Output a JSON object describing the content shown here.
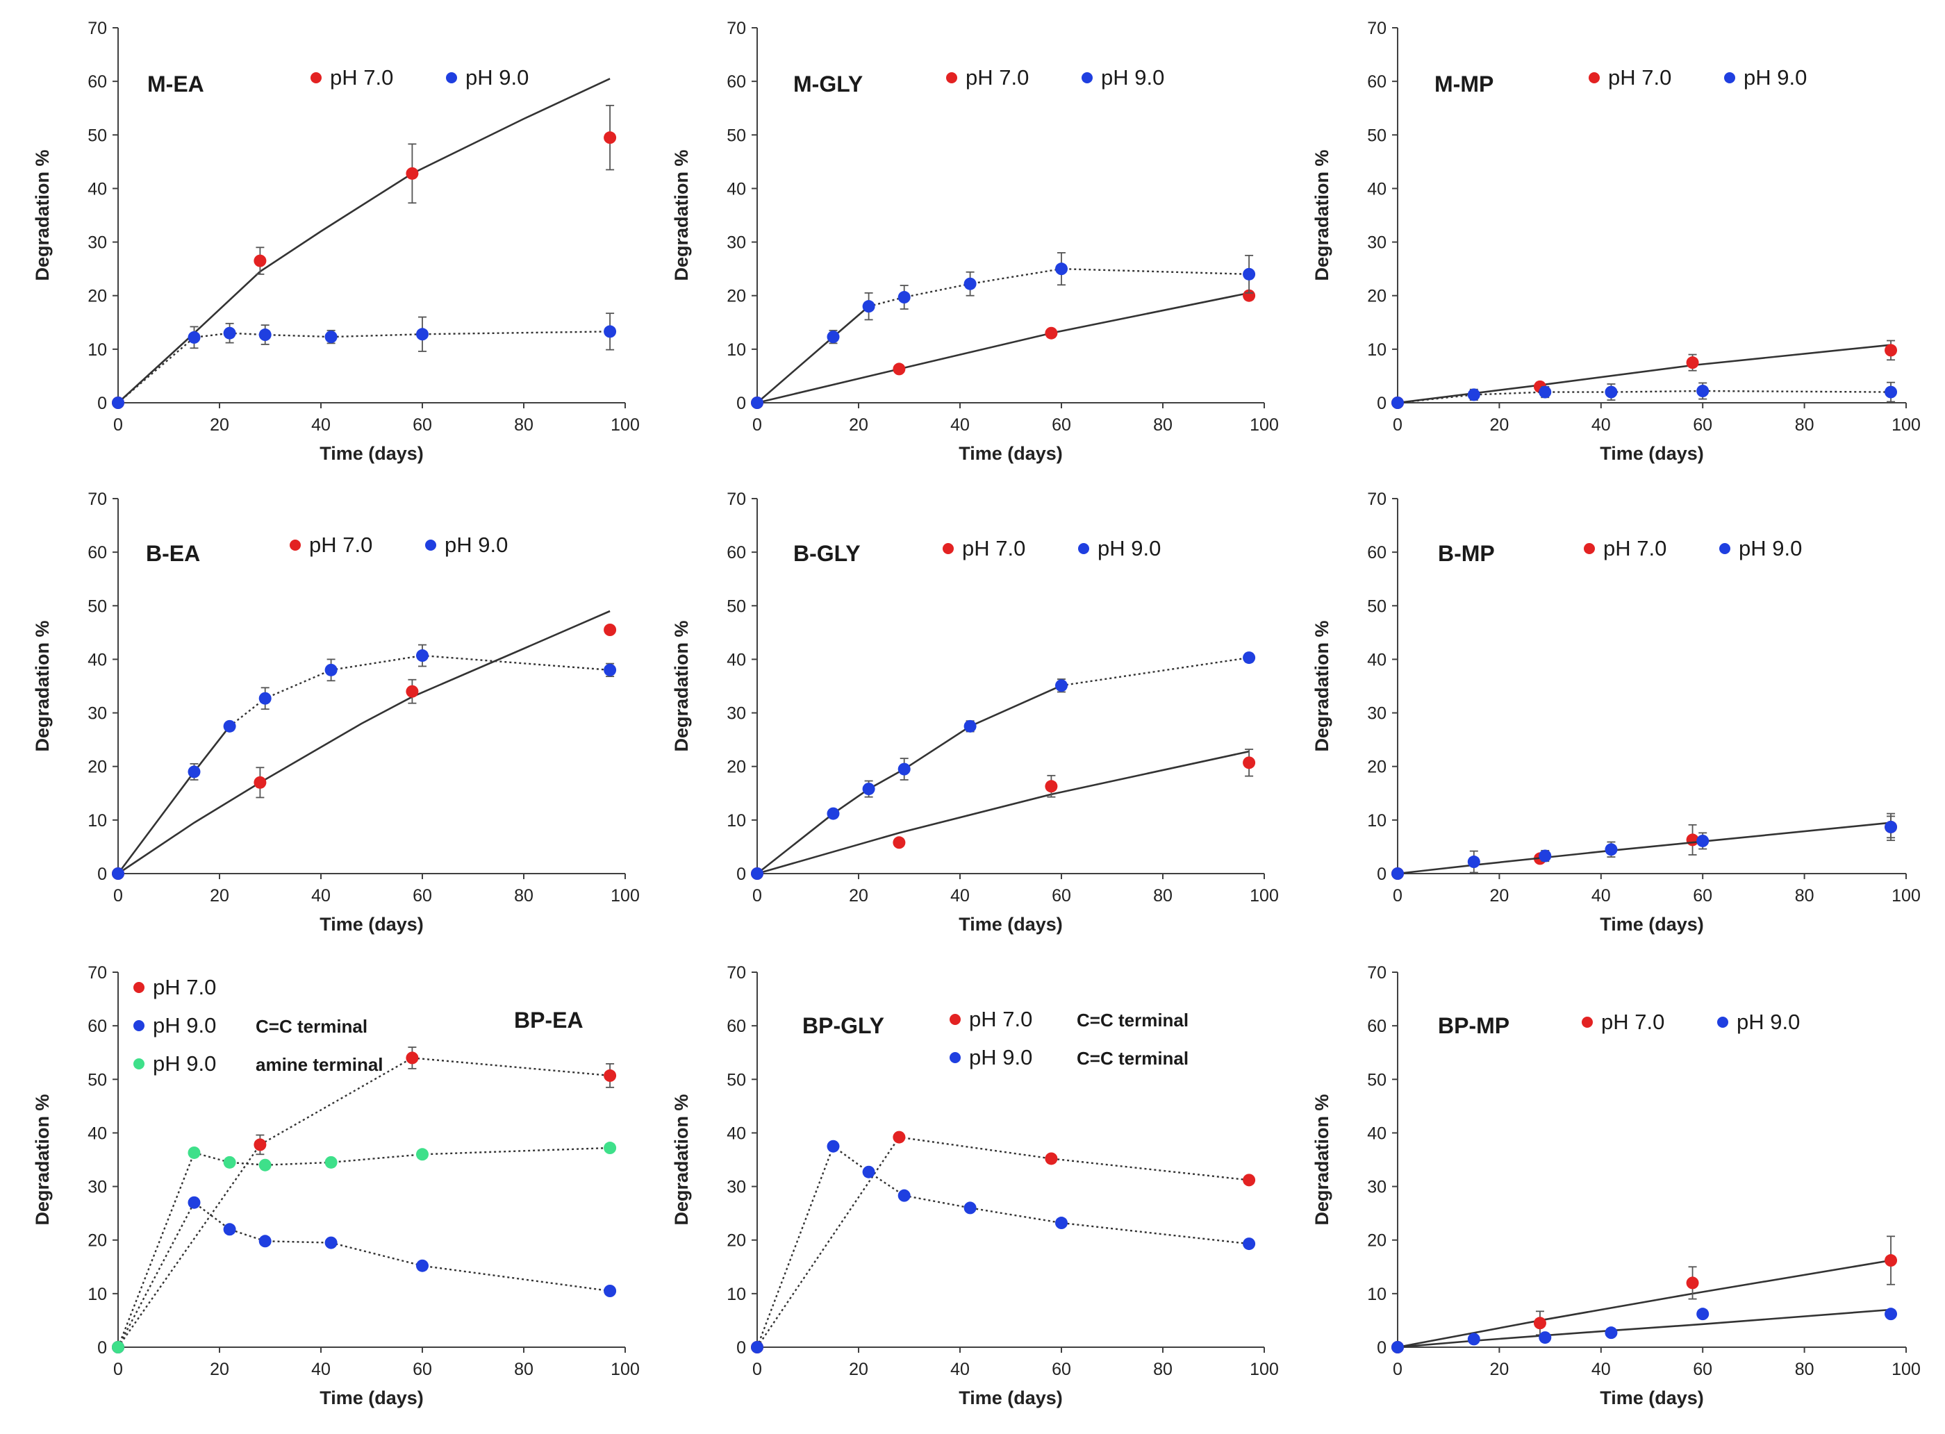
{
  "figure": {
    "colors": {
      "red": "#e32222",
      "blue": "#1f3fe0",
      "green": "#3ee08a",
      "axis": "#404040",
      "fit": "#333333"
    }
  },
  "chart_data": [
    {
      "type": "scatter",
      "title": "M-EA",
      "xlabel": "Time (days)",
      "ylabel": "Degradation %",
      "xlim": [
        0,
        100
      ],
      "ylim": [
        0,
        70
      ],
      "xticks": [
        "0",
        "20",
        "40",
        "60",
        "80",
        "100"
      ],
      "yticks": [
        "0",
        "10",
        "20",
        "30",
        "40",
        "50",
        "60",
        "70"
      ],
      "legend": [
        {
          "label": "pH 7.0",
          "color": "red"
        },
        {
          "label": "pH 9.0",
          "color": "blue"
        }
      ],
      "series": [
        {
          "name": "pH 7.0",
          "color": "red",
          "x": [
            0,
            28,
            58,
            97
          ],
          "y": [
            0,
            26.5,
            42.8,
            49.5
          ],
          "err": [
            0,
            2.5,
            5.5,
            6
          ],
          "line": "solid",
          "fit": [
            [
              0,
              0
            ],
            [
              15,
              13
            ],
            [
              28,
              24.5
            ],
            [
              40,
              32
            ],
            [
              58,
              42.8
            ],
            [
              80,
              53
            ],
            [
              97,
              60.5
            ]
          ]
        },
        {
          "name": "pH 9.0",
          "color": "blue",
          "x": [
            0,
            15,
            22,
            29,
            42,
            60,
            97
          ],
          "y": [
            0,
            12.2,
            13,
            12.7,
            12.3,
            12.8,
            13.3
          ],
          "err": [
            0,
            2,
            1.8,
            1.8,
            1.2,
            3.2,
            3.4
          ],
          "line": "dotted"
        }
      ]
    },
    {
      "type": "scatter",
      "title": "M-GLY",
      "xlabel": "Time (days)",
      "ylabel": "Degradation %",
      "xlim": [
        0,
        100
      ],
      "ylim": [
        0,
        70
      ],
      "xticks": [
        "0",
        "20",
        "40",
        "60",
        "80",
        "100"
      ],
      "yticks": [
        "0",
        "10",
        "20",
        "30",
        "40",
        "50",
        "60",
        "70"
      ],
      "legend": [
        {
          "label": "pH 7.0",
          "color": "red"
        },
        {
          "label": "pH 9.0",
          "color": "blue"
        }
      ],
      "series": [
        {
          "name": "pH 7.0",
          "color": "red",
          "x": [
            0,
            28,
            58,
            97
          ],
          "y": [
            0,
            6.3,
            13,
            20
          ],
          "err": [
            0,
            0,
            0,
            0
          ],
          "line": "solid",
          "fit": [
            [
              0,
              0
            ],
            [
              28,
              6.3
            ],
            [
              58,
              13
            ],
            [
              97,
              20.5
            ]
          ]
        },
        {
          "name": "pH 9.0",
          "color": "blue",
          "x": [
            0,
            15,
            22,
            29,
            42,
            60,
            97
          ],
          "y": [
            0,
            12.3,
            18,
            19.7,
            22.2,
            25,
            24
          ],
          "err": [
            0,
            1.2,
            2.5,
            2.2,
            2.2,
            3,
            3.5
          ],
          "line": "solid-dotted",
          "solidUntil": 2
        }
      ]
    },
    {
      "type": "scatter",
      "title": "M-MP",
      "xlabel": "Time (days)",
      "ylabel": "Degradation %",
      "xlim": [
        0,
        100
      ],
      "ylim": [
        0,
        70
      ],
      "xticks": [
        "0",
        "20",
        "40",
        "60",
        "80",
        "100"
      ],
      "yticks": [
        "0",
        "10",
        "20",
        "30",
        "40",
        "50",
        "60",
        "70"
      ],
      "legend": [
        {
          "label": "pH 7.0",
          "color": "red"
        },
        {
          "label": "pH 9.0",
          "color": "blue"
        }
      ],
      "series": [
        {
          "name": "pH 7.0",
          "color": "red",
          "x": [
            0,
            28,
            58,
            97
          ],
          "y": [
            0,
            3,
            7.5,
            9.8
          ],
          "err": [
            0,
            0.8,
            1.5,
            1.8
          ],
          "line": "solid",
          "fit": [
            [
              0,
              0
            ],
            [
              28,
              3.3
            ],
            [
              58,
              7
            ],
            [
              97,
              10.8
            ]
          ]
        },
        {
          "name": "pH 9.0",
          "color": "blue",
          "x": [
            0,
            15,
            29,
            42,
            60,
            97
          ],
          "y": [
            0,
            1.5,
            2,
            2,
            2.2,
            2
          ],
          "err": [
            0,
            1,
            1,
            1.5,
            1.5,
            1.8
          ],
          "line": "dotted"
        }
      ]
    },
    {
      "type": "scatter",
      "title": "B-EA",
      "xlabel": "Time (days)",
      "ylabel": "Degradation %",
      "xlim": [
        0,
        100
      ],
      "ylim": [
        0,
        70
      ],
      "xticks": [
        "0",
        "20",
        "40",
        "60",
        "80",
        "100"
      ],
      "yticks": [
        "0",
        "10",
        "20",
        "30",
        "40",
        "50",
        "60",
        "70"
      ],
      "legend": [
        {
          "label": "pH 7.0",
          "color": "red"
        },
        {
          "label": "pH 9.0",
          "color": "blue"
        }
      ],
      "series": [
        {
          "name": "pH 7.0",
          "color": "red",
          "x": [
            0,
            28,
            58,
            97
          ],
          "y": [
            0,
            17,
            34,
            45.5
          ],
          "err": [
            0,
            2.8,
            2.2,
            0
          ],
          "line": "solid",
          "fit": [
            [
              0,
              0
            ],
            [
              15,
              9.5
            ],
            [
              28,
              17
            ],
            [
              48,
              28
            ],
            [
              58,
              33
            ],
            [
              80,
              42
            ],
            [
              97,
              49
            ]
          ]
        },
        {
          "name": "pH 9.0",
          "color": "blue",
          "x": [
            0,
            15,
            22,
            29,
            42,
            60,
            97
          ],
          "y": [
            0,
            19,
            27.5,
            32.7,
            38,
            40.7,
            38
          ],
          "err": [
            0,
            1.5,
            0,
            2,
            2,
            2,
            1.2
          ],
          "line": "solid-dotted",
          "solidUntil": 2
        }
      ]
    },
    {
      "type": "scatter",
      "title": "B-GLY",
      "xlabel": "Time (days)",
      "ylabel": "Degradation %",
      "xlim": [
        0,
        100
      ],
      "ylim": [
        0,
        70
      ],
      "xticks": [
        "0",
        "20",
        "40",
        "60",
        "80",
        "100"
      ],
      "yticks": [
        "0",
        "10",
        "20",
        "30",
        "40",
        "50",
        "60",
        "70"
      ],
      "legend": [
        {
          "label": "pH 7.0",
          "color": "red"
        },
        {
          "label": "pH 9.0",
          "color": "blue"
        }
      ],
      "series": [
        {
          "name": "pH 7.0",
          "color": "red",
          "x": [
            0,
            28,
            58,
            97
          ],
          "y": [
            0,
            5.8,
            16.3,
            20.7
          ],
          "err": [
            0,
            0.5,
            2,
            2.5
          ],
          "line": "solid",
          "fit": [
            [
              0,
              0
            ],
            [
              28,
              7.6
            ],
            [
              58,
              14.8
            ],
            [
              97,
              22.8
            ]
          ]
        },
        {
          "name": "pH 9.0",
          "color": "blue",
          "x": [
            0,
            15,
            22,
            29,
            42,
            60,
            97
          ],
          "y": [
            0,
            11.2,
            15.8,
            19.5,
            27.5,
            35.1,
            40.3
          ],
          "err": [
            0,
            0.5,
            1.5,
            2,
            1,
            1.2,
            0.8
          ],
          "line": "solid-dotted",
          "solidUntil": 5
        }
      ]
    },
    {
      "type": "scatter",
      "title": "B-MP",
      "xlabel": "Time (days)",
      "ylabel": "Degradation %",
      "xlim": [
        0,
        100
      ],
      "ylim": [
        0,
        70
      ],
      "xticks": [
        "0",
        "20",
        "40",
        "60",
        "80",
        "100"
      ],
      "yticks": [
        "0",
        "10",
        "20",
        "30",
        "40",
        "50",
        "60",
        "70"
      ],
      "legend": [
        {
          "label": "pH 7.0",
          "color": "red"
        },
        {
          "label": "pH 9.0",
          "color": "blue"
        }
      ],
      "series": [
        {
          "name": "pH 7.0",
          "color": "red",
          "x": [
            0,
            28,
            58,
            97
          ],
          "y": [
            0,
            2.8,
            6.3,
            8.7
          ],
          "err": [
            0,
            0.5,
            2.8,
            2.5
          ],
          "line": "none"
        },
        {
          "name": "pH 9.0",
          "color": "blue",
          "x": [
            0,
            15,
            29,
            42,
            60,
            97
          ],
          "y": [
            0,
            2.2,
            3.3,
            4.5,
            6.1,
            8.7
          ],
          "err": [
            0,
            2,
            1,
            1.4,
            1.5,
            2
          ],
          "line": "solid",
          "fit": [
            [
              0,
              0
            ],
            [
              15,
              1.6
            ],
            [
              29,
              3
            ],
            [
              42,
              4.3
            ],
            [
              60,
              6
            ],
            [
              97,
              9.5
            ]
          ]
        }
      ]
    },
    {
      "type": "scatter",
      "title": "BP-EA",
      "xlabel": "Time (days)",
      "ylabel": "Degradation %",
      "xlim": [
        0,
        100
      ],
      "ylim": [
        0,
        70
      ],
      "xticks": [
        "0",
        "20",
        "40",
        "60",
        "80",
        "100"
      ],
      "yticks": [
        "0",
        "10",
        "20",
        "30",
        "40",
        "50",
        "60",
        "70"
      ],
      "legend": [
        {
          "label": "pH 7.0",
          "color": "red",
          "note": ""
        },
        {
          "label": "pH 9.0",
          "color": "blue",
          "note": "C=C terminal"
        },
        {
          "label": "pH 9.0",
          "color": "green",
          "note": "amine terminal"
        }
      ],
      "series": [
        {
          "name": "pH 7.0",
          "color": "red",
          "x": [
            0,
            28,
            58,
            97
          ],
          "y": [
            0,
            37.8,
            54,
            50.7
          ],
          "err": [
            0,
            1.8,
            2,
            2.2
          ],
          "line": "dotted"
        },
        {
          "name": "pH 9.0 C=C terminal",
          "color": "blue",
          "x": [
            0,
            15,
            22,
            29,
            42,
            60,
            97
          ],
          "y": [
            0,
            27,
            22,
            19.8,
            19.5,
            15.2,
            10.5
          ],
          "err": [
            0,
            0,
            0,
            0,
            0,
            0,
            0
          ],
          "line": "dotted"
        },
        {
          "name": "pH 9.0 amine terminal",
          "color": "green",
          "x": [
            0,
            15,
            22,
            29,
            42,
            60,
            97
          ],
          "y": [
            0,
            36.3,
            34.5,
            34,
            34.5,
            36,
            37.2
          ],
          "err": [
            0,
            0,
            0,
            0,
            0,
            0,
            0
          ],
          "line": "dotted"
        }
      ]
    },
    {
      "type": "scatter",
      "title": "BP-GLY",
      "xlabel": "Time (days)",
      "ylabel": "Degradation %",
      "xlim": [
        0,
        100
      ],
      "ylim": [
        0,
        70
      ],
      "xticks": [
        "0",
        "20",
        "40",
        "60",
        "80",
        "100"
      ],
      "yticks": [
        "0",
        "10",
        "20",
        "30",
        "40",
        "50",
        "60",
        "70"
      ],
      "legend": [
        {
          "label": "pH 7.0",
          "color": "red",
          "note": "C=C terminal"
        },
        {
          "label": "pH 9.0",
          "color": "blue",
          "note": "C=C terminal"
        }
      ],
      "series": [
        {
          "name": "pH 7.0 C=C terminal",
          "color": "red",
          "x": [
            0,
            28,
            58,
            97
          ],
          "y": [
            0,
            39.2,
            35.2,
            31.2
          ],
          "err": [
            0,
            0,
            0,
            0
          ],
          "line": "dotted"
        },
        {
          "name": "pH 9.0 C=C terminal",
          "color": "blue",
          "x": [
            0,
            15,
            22,
            29,
            42,
            60,
            97
          ],
          "y": [
            0,
            37.5,
            32.7,
            28.3,
            26,
            23.2,
            19.3
          ],
          "err": [
            0,
            0,
            0,
            0,
            0,
            0,
            0
          ],
          "line": "dotted"
        }
      ]
    },
    {
      "type": "scatter",
      "title": "BP-MP",
      "xlabel": "Time (days)",
      "ylabel": "Degradation %",
      "xlim": [
        0,
        100
      ],
      "ylim": [
        0,
        70
      ],
      "xticks": [
        "0",
        "20",
        "40",
        "60",
        "80",
        "100"
      ],
      "yticks": [
        "0",
        "10",
        "20",
        "30",
        "40",
        "50",
        "60",
        "70"
      ],
      "legend": [
        {
          "label": "pH 7.0",
          "color": "red"
        },
        {
          "label": "pH 9.0",
          "color": "blue"
        }
      ],
      "series": [
        {
          "name": "pH 7.0",
          "color": "red",
          "x": [
            0,
            28,
            58,
            97
          ],
          "y": [
            0,
            4.5,
            12,
            16.2
          ],
          "err": [
            0,
            2.2,
            3,
            4.5
          ],
          "line": "solid",
          "fit": [
            [
              0,
              0
            ],
            [
              28,
              5
            ],
            [
              58,
              10
            ],
            [
              97,
              16.2
            ]
          ]
        },
        {
          "name": "pH 9.0",
          "color": "blue",
          "x": [
            0,
            15,
            29,
            42,
            60,
            97
          ],
          "y": [
            0,
            1.5,
            1.8,
            2.7,
            6.2,
            6.2
          ],
          "err": [
            0,
            0,
            0,
            0,
            0,
            0
          ],
          "line": "solid",
          "fit": [
            [
              0,
              0
            ],
            [
              15,
              1.2
            ],
            [
              29,
              2.2
            ],
            [
              42,
              3.1
            ],
            [
              60,
              4.3
            ],
            [
              97,
              7
            ]
          ]
        }
      ]
    }
  ]
}
